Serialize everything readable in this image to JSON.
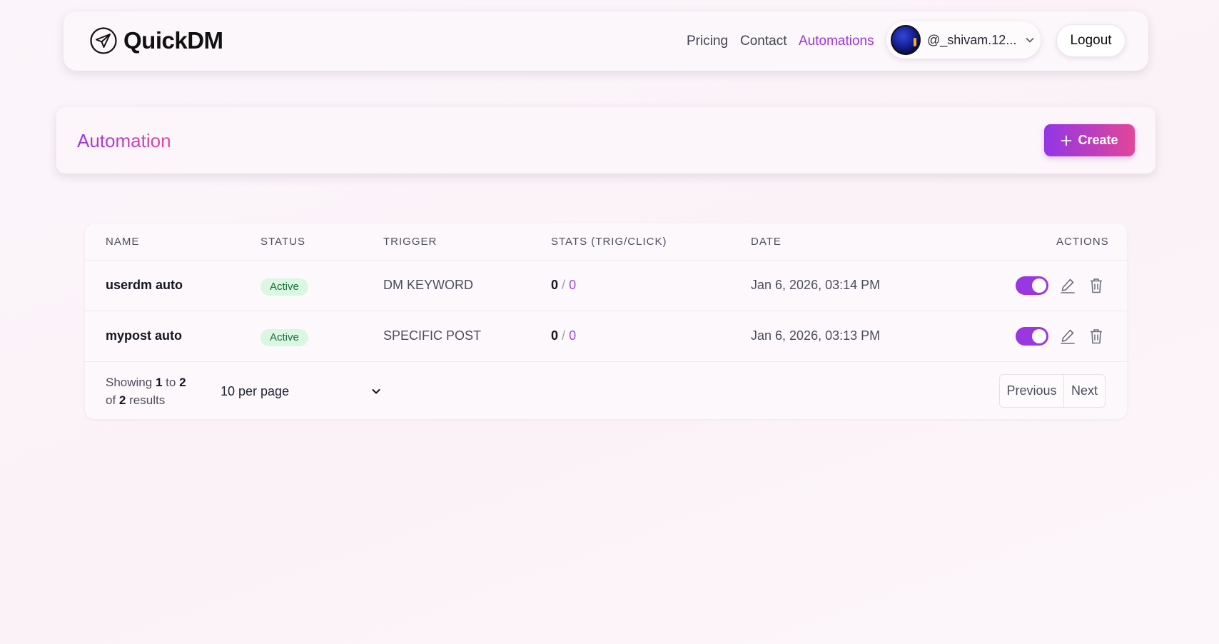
{
  "brand": {
    "name": "QuickDM",
    "icon": "paper-plane-icon"
  },
  "nav": {
    "links": [
      {
        "label": "Pricing"
      },
      {
        "label": "Contact"
      },
      {
        "label": "Automations",
        "active": true
      }
    ],
    "user": {
      "handle": "@_shivam.12...",
      "avatar": "avatar-image"
    },
    "logout_label": "Logout"
  },
  "header": {
    "title": "Automation",
    "create_label": "Create"
  },
  "table": {
    "columns": [
      "NAME",
      "STATUS",
      "TRIGGER",
      "STATS (TRIG/CLICK)",
      "DATE",
      "ACTIONS"
    ],
    "rows": [
      {
        "name": "userdm auto",
        "status": "Active",
        "trigger": "DM KEYWORD",
        "stats_trig": "0",
        "stats_sep": "/",
        "stats_click": "0",
        "date": "Jan 6, 2026, 03:14 PM",
        "enabled": true
      },
      {
        "name": "mypost auto",
        "status": "Active",
        "trigger": "SPECIFIC POST",
        "stats_trig": "0",
        "stats_sep": "/",
        "stats_click": "0",
        "date": "Jan 6, 2026, 03:13 PM",
        "enabled": true
      }
    ],
    "footer": {
      "showing_word": "Showing",
      "from": "1",
      "to_word": "to",
      "to": "2",
      "of_word": "of",
      "total": "2",
      "results_word": "results",
      "per_page": "10 per page",
      "prev_label": "Previous",
      "next_label": "Next"
    }
  },
  "colors": {
    "accent": "#9b35d8",
    "gradient_start": "#9236e6",
    "gradient_end": "#e24699",
    "badge_bg": "#d9f7e1",
    "badge_text": "#1e6b3a"
  }
}
